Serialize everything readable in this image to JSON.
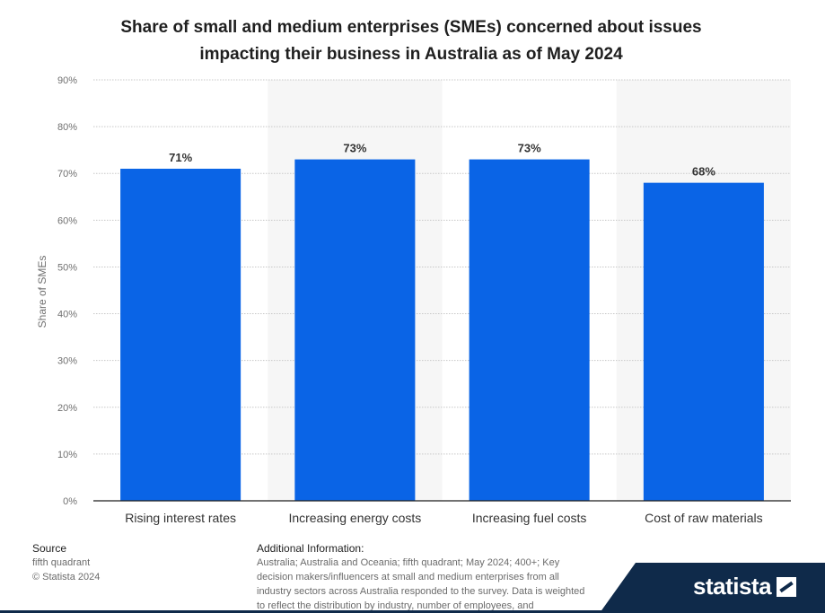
{
  "chart_data": {
    "type": "bar",
    "title": "Share of small and medium enterprises (SMEs) concerned about issues impacting their business in Australia as of May 2024",
    "title_lines": [
      "Share of small and medium enterprises (SMEs) concerned about issues",
      "impacting their business in Australia as of May 2024"
    ],
    "categories": [
      "Rising interest rates",
      "Increasing energy costs",
      "Increasing fuel costs",
      "Cost of raw materials"
    ],
    "values": [
      71,
      73,
      73,
      68
    ],
    "value_labels": [
      "71%",
      "73%",
      "73%",
      "68%"
    ],
    "ylabel": "Share of SMEs",
    "ylim": [
      0,
      90
    ],
    "yticks": [
      0,
      10,
      20,
      30,
      40,
      50,
      60,
      70,
      80,
      90
    ],
    "ytick_labels": [
      "0%",
      "10%",
      "20%",
      "30%",
      "40%",
      "50%",
      "60%",
      "70%",
      "80%",
      "90%"
    ],
    "grid": true,
    "bar_color": "#0a64e6"
  },
  "footer": {
    "source_heading": "Source",
    "source_name": "fifth quadrant",
    "copyright": "© Statista 2024",
    "additional_heading": "Additional Information:",
    "additional_text": "Australia; Australia and Oceania; fifth quadrant; May 2024; 400+; Key decision makers/influencers at small and medium enterprises from all industry sectors across Australia responded to the survey. Data is weighted to reflect the distribution by industry, number of employees, and"
  },
  "brand": {
    "name": "statista"
  }
}
